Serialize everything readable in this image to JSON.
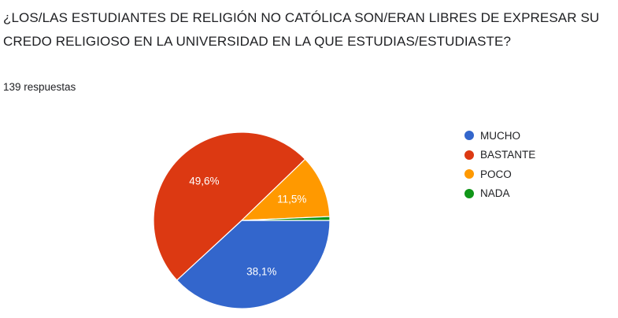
{
  "question": {
    "title": "¿LOS/LAS ESTUDIANTES DE RELIGIÓN NO CATÓLICA SON/ERAN LIBRES DE EXPRESAR SU CREDO RELIGIOSO EN LA UNIVERSIDAD EN LA QUE ESTUDIAS/ESTUDIASTE?",
    "response_count": "139 respuestas"
  },
  "chart_data": {
    "type": "pie",
    "title": "",
    "categories": [
      "MUCHO",
      "BASTANTE",
      "POCO",
      "NADA"
    ],
    "values": [
      38.1,
      49.6,
      11.5,
      0.7
    ],
    "labels": [
      "38,1%",
      "49,6%",
      "11,5%",
      ""
    ],
    "colors": [
      "#3366cc",
      "#dc3912",
      "#ff9900",
      "#109618"
    ],
    "legend_position": "right"
  }
}
